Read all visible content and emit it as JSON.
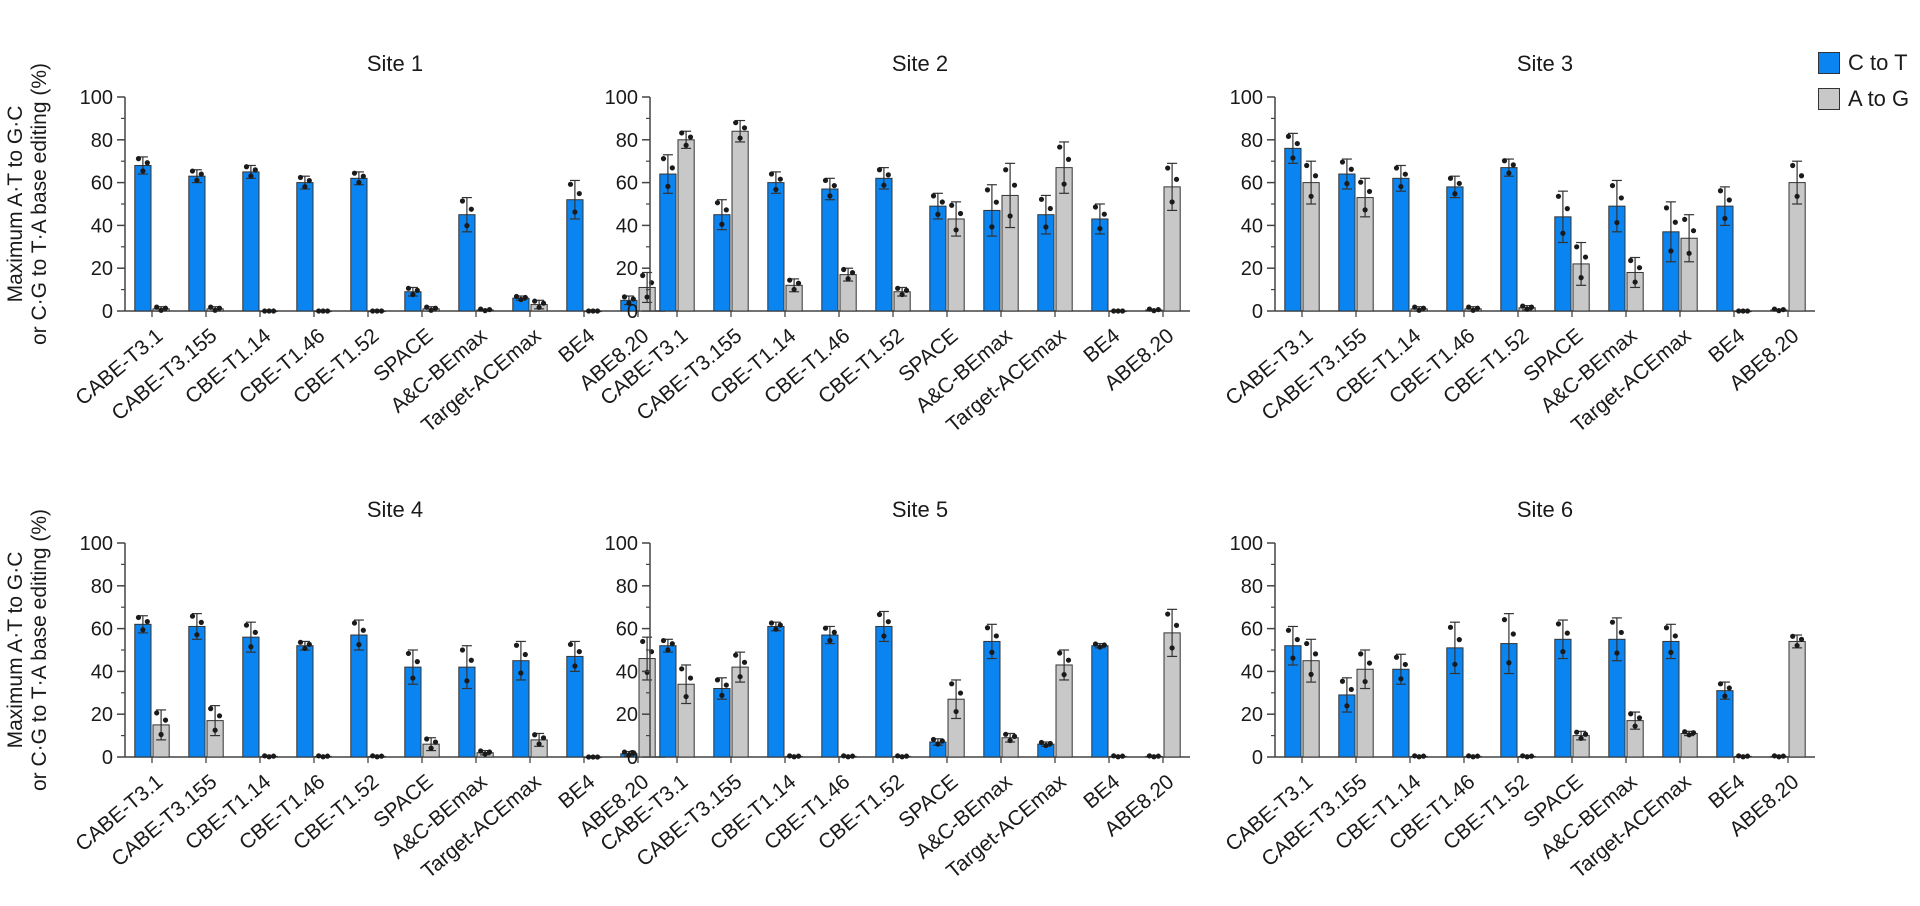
{
  "figure": {
    "ylabel_line1": "Maximum A·T to G·C",
    "ylabel_line2": "or C·G to T·A base editing (%)",
    "colors": {
      "c_to_t": "#0a84f0",
      "a_to_g": "#c8c8c8",
      "error": "#333333",
      "dot": "#1a1a1a"
    }
  },
  "legend": [
    {
      "label": "C to T",
      "color": "#0a84f0"
    },
    {
      "label": "A to G",
      "color": "#c8c8c8"
    }
  ],
  "chart_data": [
    {
      "type": "bar",
      "title": "Site 1",
      "ylim": [
        0,
        100
      ],
      "yticks": [
        0,
        20,
        40,
        60,
        80,
        100
      ],
      "categories": [
        "CABE-T3.1",
        "CABE-T3.155",
        "CBE-T1.14",
        "CBE-T1.46",
        "CBE-T1.52",
        "SPACE",
        "A&C-BEmax",
        "Target-ACEmax",
        "BE4",
        "ABE8.20"
      ],
      "series": [
        {
          "name": "C to T",
          "values": [
            68,
            63,
            65,
            60,
            62,
            9,
            45,
            6,
            52,
            5
          ],
          "errors": [
            4,
            3,
            3,
            3,
            3,
            2,
            8,
            1,
            9,
            2
          ]
        },
        {
          "name": "A to G",
          "values": [
            1,
            1,
            0,
            0,
            0,
            1,
            0.5,
            3,
            0,
            11
          ],
          "errors": [
            1,
            1,
            0,
            0,
            0,
            1,
            0.5,
            2,
            0,
            7
          ]
        }
      ]
    },
    {
      "type": "bar",
      "title": "Site 2",
      "ylim": [
        0,
        100
      ],
      "yticks": [
        0,
        20,
        40,
        60,
        80,
        100
      ],
      "categories": [
        "CABE-T3.1",
        "CABE-T3.155",
        "CBE-T1.14",
        "CBE-T1.46",
        "CBE-T1.52",
        "SPACE",
        "A&C-BEmax",
        "Target-ACEmax",
        "BE4",
        "ABE8.20"
      ],
      "series": [
        {
          "name": "C to T",
          "values": [
            64,
            45,
            60,
            57,
            62,
            49,
            47,
            45,
            43,
            0.5
          ],
          "errors": [
            9,
            7,
            5,
            5,
            5,
            6,
            12,
            9,
            7,
            0.5
          ]
        },
        {
          "name": "A to G",
          "values": [
            80,
            84,
            12,
            17,
            9,
            43,
            54,
            67,
            0,
            58
          ],
          "errors": [
            4,
            5,
            3,
            3,
            2,
            8,
            15,
            12,
            0,
            11
          ]
        }
      ]
    },
    {
      "type": "bar",
      "title": "Site 3",
      "ylim": [
        0,
        100
      ],
      "yticks": [
        0,
        20,
        40,
        60,
        80,
        100
      ],
      "categories": [
        "CABE-T3.1",
        "CABE-T3.155",
        "CBE-T1.14",
        "CBE-T1.46",
        "CBE-T1.52",
        "SPACE",
        "A&C-BEmax",
        "Target-ACEmax",
        "BE4",
        "ABE8.20"
      ],
      "series": [
        {
          "name": "C to T",
          "values": [
            76,
            64,
            62,
            58,
            67,
            44,
            49,
            37,
            49,
            0.5
          ],
          "errors": [
            7,
            7,
            6,
            5,
            4,
            12,
            12,
            14,
            9,
            0.5
          ]
        },
        {
          "name": "A to G",
          "values": [
            60,
            53,
            1,
            1,
            1.5,
            22,
            18,
            34,
            0,
            60
          ],
          "errors": [
            10,
            9,
            1,
            1,
            1,
            10,
            7,
            11,
            0,
            10
          ]
        }
      ]
    },
    {
      "type": "bar",
      "title": "Site 4",
      "ylim": [
        0,
        100
      ],
      "yticks": [
        0,
        20,
        40,
        60,
        80,
        100
      ],
      "categories": [
        "CABE-T3.1",
        "CABE-T3.155",
        "CBE-T1.14",
        "CBE-T1.46",
        "CBE-T1.52",
        "SPACE",
        "A&C-BEmax",
        "Target-ACEmax",
        "BE4",
        "ABE8.20"
      ],
      "series": [
        {
          "name": "C to T",
          "values": [
            62,
            61,
            56,
            52,
            57,
            42,
            42,
            45,
            47,
            1.5
          ],
          "errors": [
            4,
            6,
            7,
            2,
            7,
            8,
            10,
            9,
            7,
            1
          ]
        },
        {
          "name": "A to G",
          "values": [
            15,
            17,
            0.3,
            0.3,
            0.3,
            6,
            2,
            8,
            0,
            46
          ],
          "errors": [
            7,
            7,
            0.3,
            0.3,
            0.3,
            3,
            1,
            3,
            0,
            10
          ]
        }
      ]
    },
    {
      "type": "bar",
      "title": "Site 5",
      "ylim": [
        0,
        100
      ],
      "yticks": [
        0,
        20,
        40,
        60,
        80,
        100
      ],
      "categories": [
        "CABE-T3.1",
        "CABE-T3.155",
        "CBE-T1.14",
        "CBE-T1.46",
        "CBE-T1.52",
        "SPACE",
        "A&C-BEmax",
        "Target-ACEmax",
        "BE4",
        "ABE8.20"
      ],
      "series": [
        {
          "name": "C to T",
          "values": [
            52,
            32,
            61,
            57,
            61,
            7,
            54,
            6,
            52,
            0.3
          ],
          "errors": [
            3,
            5,
            2,
            4,
            7,
            1.5,
            8,
            1,
            1,
            0.3
          ]
        },
        {
          "name": "A to G",
          "values": [
            34,
            42,
            0.3,
            0.3,
            0.3,
            27,
            9,
            43,
            0.3,
            58
          ],
          "errors": [
            9,
            7,
            0.3,
            0.3,
            0.3,
            9,
            2,
            7,
            0.3,
            11
          ]
        }
      ]
    },
    {
      "type": "bar",
      "title": "Site 6",
      "ylim": [
        0,
        100
      ],
      "yticks": [
        0,
        20,
        40,
        60,
        80,
        100
      ],
      "categories": [
        "CABE-T3.1",
        "CABE-T3.155",
        "CBE-T1.14",
        "CBE-T1.46",
        "CBE-T1.52",
        "SPACE",
        "A&C-BEmax",
        "Target-ACEmax",
        "BE4",
        "ABE8.20"
      ],
      "series": [
        {
          "name": "C to T",
          "values": [
            52,
            29,
            41,
            51,
            53,
            55,
            55,
            54,
            31,
            0.3
          ],
          "errors": [
            9,
            8,
            7,
            12,
            14,
            9,
            10,
            8,
            4,
            0.3
          ]
        },
        {
          "name": "A to G",
          "values": [
            45,
            41,
            0.3,
            0.3,
            0.3,
            10,
            17,
            11,
            0.3,
            54
          ],
          "errors": [
            10,
            9,
            0.3,
            0.3,
            0.3,
            2,
            4,
            1,
            0.3,
            3
          ]
        }
      ]
    }
  ]
}
